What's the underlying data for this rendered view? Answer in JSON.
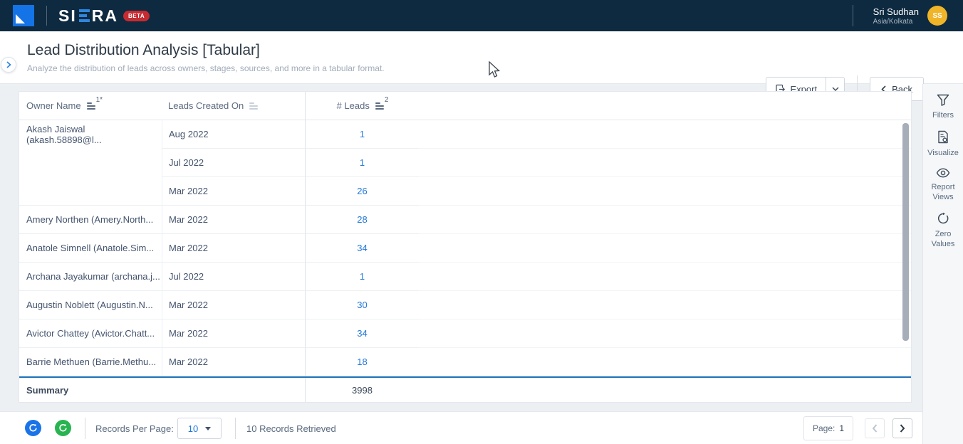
{
  "topbar": {
    "brand_left": "SI",
    "brand_right": "RA",
    "beta": "BETA",
    "user_name": "Sri Sudhan",
    "user_timezone": "Asia/Kolkata",
    "avatar_initials": "SS"
  },
  "header": {
    "title": "Lead Distribution Analysis [Tabular]",
    "subtitle": "Analyze the distribution of leads across owners, stages, sources, and more in a tabular format.",
    "export_label": "Export",
    "back_label": "Back"
  },
  "table": {
    "columns": [
      {
        "label": "Owner Name",
        "badge": "1*"
      },
      {
        "label": "Leads Created On",
        "badge": ""
      },
      {
        "label": "# Leads",
        "badge": "2"
      }
    ],
    "groups": [
      {
        "owner": "Akash Jaiswal (akash.58898@l...",
        "rows": [
          {
            "month": "Aug 2022",
            "leads": "1"
          },
          {
            "month": "Jul 2022",
            "leads": "1"
          },
          {
            "month": "Mar 2022",
            "leads": "26"
          }
        ]
      },
      {
        "owner": "Amery Northen (Amery.North...",
        "rows": [
          {
            "month": "Mar 2022",
            "leads": "28"
          }
        ]
      },
      {
        "owner": "Anatole Simnell (Anatole.Sim...",
        "rows": [
          {
            "month": "Mar 2022",
            "leads": "34"
          }
        ]
      },
      {
        "owner": "Archana Jayakumar (archana.j...",
        "rows": [
          {
            "month": "Jul 2022",
            "leads": "1"
          }
        ]
      },
      {
        "owner": "Augustin Noblett (Augustin.N...",
        "rows": [
          {
            "month": "Mar 2022",
            "leads": "30"
          }
        ]
      },
      {
        "owner": "Avictor Chattey (Avictor.Chatt...",
        "rows": [
          {
            "month": "Mar 2022",
            "leads": "34"
          }
        ]
      },
      {
        "owner": "Barrie Methuen (Barrie.Methu...",
        "rows": [
          {
            "month": "Mar 2022",
            "leads": "18"
          }
        ]
      }
    ],
    "summary_label": "Summary",
    "summary_value": "3998"
  },
  "sidebar": {
    "items": [
      {
        "label": "Filters",
        "icon": "filter-icon"
      },
      {
        "label": "Visualize",
        "icon": "visualize-icon"
      },
      {
        "label": "Report Views",
        "icon": "eye-icon"
      },
      {
        "label": "Zero Values",
        "icon": "zero-values-icon"
      }
    ]
  },
  "footer": {
    "records_per_page_label": "Records Per Page:",
    "records_per_page_value": "10",
    "records_retrieved": "10 Records Retrieved",
    "page_label": "Page:",
    "page_value": "1"
  },
  "colors": {
    "topbar_bg": "#0e2a40",
    "logo_blue": "#1473e6",
    "beta_red": "#c62b32",
    "avatar_yellow": "#f0b429",
    "link_blue": "#2379d9",
    "summary_line_blue": "#1f74ba",
    "refresh_blue": "#1a73e8",
    "refresh_green": "#28b450"
  }
}
